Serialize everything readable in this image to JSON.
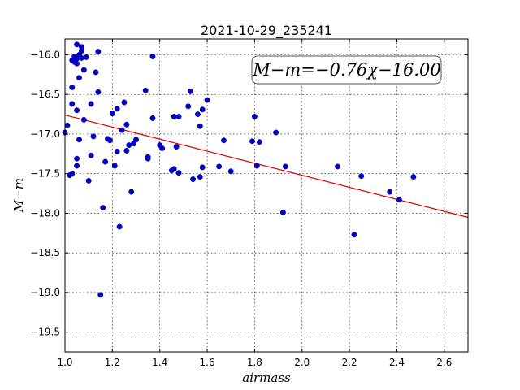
{
  "chart_data": {
    "type": "scatter",
    "title": "2021-10-29_235241",
    "xlabel": "airmass",
    "ylabel": "M−m",
    "xlim": [
      1.0,
      2.7
    ],
    "ylim": [
      -19.75,
      -15.8
    ],
    "y_inverted": true,
    "grid": true,
    "x_ticks": [
      1.0,
      1.2,
      1.4,
      1.6,
      1.8,
      2.0,
      2.2,
      2.4,
      2.6
    ],
    "x_tick_labels": [
      "1.0",
      "1.2",
      "1.4",
      "1.6",
      "1.8",
      "2.0",
      "2.2",
      "2.4",
      "2.6"
    ],
    "y_ticks": [
      -16.0,
      -16.5,
      -17.0,
      -17.5,
      -18.0,
      -18.5,
      -19.0,
      -19.5
    ],
    "y_tick_labels": [
      "−16.0",
      "−16.5",
      "−17.0",
      "−17.5",
      "−18.0",
      "−18.5",
      "−19.0",
      "−19.5"
    ],
    "annotation": "M−m=−0.76χ−16.00",
    "point_color": "#0000cc",
    "fit_color": "#dd0000",
    "fit": {
      "slope": -0.76,
      "intercept": -16.0
    },
    "points": [
      {
        "x": 1.0,
        "y": -16.98
      },
      {
        "x": 1.01,
        "y": -16.89
      },
      {
        "x": 1.02,
        "y": -17.52
      },
      {
        "x": 1.03,
        "y": -17.5
      },
      {
        "x": 1.03,
        "y": -16.41
      },
      {
        "x": 1.03,
        "y": -16.62
      },
      {
        "x": 1.03,
        "y": -16.07
      },
      {
        "x": 1.04,
        "y": -16.09
      },
      {
        "x": 1.04,
        "y": -16.02
      },
      {
        "x": 1.05,
        "y": -16.05
      },
      {
        "x": 1.05,
        "y": -16.11
      },
      {
        "x": 1.05,
        "y": -16.7
      },
      {
        "x": 1.05,
        "y": -17.31
      },
      {
        "x": 1.05,
        "y": -17.4
      },
      {
        "x": 1.05,
        "y": -15.87
      },
      {
        "x": 1.06,
        "y": -16.0
      },
      {
        "x": 1.06,
        "y": -16.29
      },
      {
        "x": 1.06,
        "y": -17.07
      },
      {
        "x": 1.07,
        "y": -16.04
      },
      {
        "x": 1.07,
        "y": -15.95
      },
      {
        "x": 1.07,
        "y": -15.9
      },
      {
        "x": 1.08,
        "y": -16.19
      },
      {
        "x": 1.08,
        "y": -16.82
      },
      {
        "x": 1.09,
        "y": -16.03
      },
      {
        "x": 1.1,
        "y": -17.59
      },
      {
        "x": 1.11,
        "y": -16.62
      },
      {
        "x": 1.11,
        "y": -17.27
      },
      {
        "x": 1.12,
        "y": -17.03
      },
      {
        "x": 1.13,
        "y": -16.22
      },
      {
        "x": 1.14,
        "y": -15.96
      },
      {
        "x": 1.14,
        "y": -16.47
      },
      {
        "x": 1.15,
        "y": -19.03
      },
      {
        "x": 1.16,
        "y": -17.93
      },
      {
        "x": 1.17,
        "y": -17.35
      },
      {
        "x": 1.18,
        "y": -17.06
      },
      {
        "x": 1.19,
        "y": -17.08
      },
      {
        "x": 1.2,
        "y": -16.74
      },
      {
        "x": 1.21,
        "y": -17.4
      },
      {
        "x": 1.22,
        "y": -16.68
      },
      {
        "x": 1.22,
        "y": -17.22
      },
      {
        "x": 1.23,
        "y": -18.17
      },
      {
        "x": 1.24,
        "y": -16.95
      },
      {
        "x": 1.25,
        "y": -16.6
      },
      {
        "x": 1.26,
        "y": -17.21
      },
      {
        "x": 1.26,
        "y": -16.88
      },
      {
        "x": 1.27,
        "y": -17.14
      },
      {
        "x": 1.28,
        "y": -17.73
      },
      {
        "x": 1.29,
        "y": -17.12
      },
      {
        "x": 1.3,
        "y": -17.07
      },
      {
        "x": 1.34,
        "y": -16.45
      },
      {
        "x": 1.35,
        "y": -17.29
      },
      {
        "x": 1.35,
        "y": -17.31
      },
      {
        "x": 1.37,
        "y": -16.8
      },
      {
        "x": 1.37,
        "y": -16.02
      },
      {
        "x": 1.4,
        "y": -17.14
      },
      {
        "x": 1.41,
        "y": -17.18
      },
      {
        "x": 1.45,
        "y": -17.46
      },
      {
        "x": 1.46,
        "y": -17.44
      },
      {
        "x": 1.46,
        "y": -16.78
      },
      {
        "x": 1.47,
        "y": -17.16
      },
      {
        "x": 1.48,
        "y": -16.78
      },
      {
        "x": 1.48,
        "y": -17.49
      },
      {
        "x": 1.52,
        "y": -16.65
      },
      {
        "x": 1.53,
        "y": -16.46
      },
      {
        "x": 1.54,
        "y": -17.57
      },
      {
        "x": 1.56,
        "y": -16.75
      },
      {
        "x": 1.57,
        "y": -16.9
      },
      {
        "x": 1.57,
        "y": -17.54
      },
      {
        "x": 1.58,
        "y": -17.42
      },
      {
        "x": 1.58,
        "y": -16.69
      },
      {
        "x": 1.6,
        "y": -16.57
      },
      {
        "x": 1.65,
        "y": -17.41
      },
      {
        "x": 1.67,
        "y": -17.08
      },
      {
        "x": 1.7,
        "y": -17.47
      },
      {
        "x": 1.79,
        "y": -17.09
      },
      {
        "x": 1.8,
        "y": -16.78
      },
      {
        "x": 1.81,
        "y": -17.4
      },
      {
        "x": 1.82,
        "y": -17.1
      },
      {
        "x": 1.89,
        "y": -16.98
      },
      {
        "x": 1.92,
        "y": -17.99
      },
      {
        "x": 1.93,
        "y": -17.41
      },
      {
        "x": 2.15,
        "y": -17.41
      },
      {
        "x": 2.22,
        "y": -18.27
      },
      {
        "x": 2.25,
        "y": -17.53
      },
      {
        "x": 2.37,
        "y": -17.73
      },
      {
        "x": 2.41,
        "y": -17.83
      },
      {
        "x": 2.47,
        "y": -17.54
      }
    ]
  }
}
